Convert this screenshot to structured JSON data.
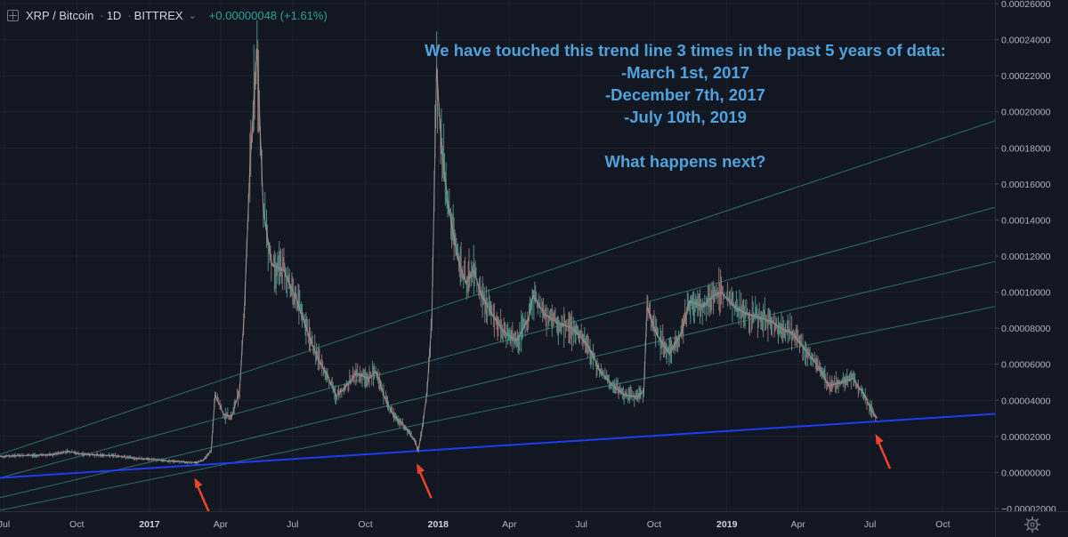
{
  "header": {
    "symbol": "XRP / Bitcoin",
    "interval": "1D",
    "exchange": "BITTREX",
    "change": "+0.00000048 (+1.61%)"
  },
  "annotation": {
    "lines": [
      "We have touched this trend line 3 times in the past 5 years of data:",
      "-March 1st, 2017",
      "-December 7th, 2017",
      "-July 10th, 2019",
      "",
      "What happens next?"
    ]
  },
  "colors": {
    "background": "#131722",
    "trend_line": "#1f3cf5",
    "channel_lines": "#2f6f6a",
    "arrows": "#e8452c",
    "annotation_text": "#4fa3dc",
    "candle_up": "#4f8c82",
    "candle_down": "#8a6f70"
  },
  "icons": [
    "expand-icon",
    "chevron-down-icon",
    "gear-icon",
    "arrow-icon"
  ],
  "chart_data": {
    "type": "line",
    "title": "XRP / Bitcoin",
    "y_tick_labels": [
      "0.00026000",
      "0.00024000",
      "0.00022000",
      "0.00020000",
      "0.00018000",
      "0.00016000",
      "0.00014000",
      "0.00012000",
      "0.00010000",
      "0.00008000",
      "0.00006000",
      "0.00004000",
      "0.00002000",
      "0.00000000",
      "−0.00002000"
    ],
    "ylim": [
      -2.15e-05,
      0.000262
    ],
    "x_tick_labels": [
      "Jul",
      "Oct",
      "2017",
      "Apr",
      "Jul",
      "Oct",
      "2018",
      "Apr",
      "Jul",
      "Oct",
      "2019",
      "Apr",
      "Jul",
      "Oct"
    ],
    "x_tick_dates": [
      "2016-07-01",
      "2016-10-01",
      "2017-01-01",
      "2017-04-01",
      "2017-07-01",
      "2017-10-01",
      "2018-01-01",
      "2018-04-01",
      "2018-07-01",
      "2018-10-01",
      "2019-01-01",
      "2019-04-01",
      "2019-07-01",
      "2019-10-01"
    ],
    "xlim": [
      "2016-06-26",
      "2019-12-06"
    ],
    "grid": true,
    "series": [
      {
        "values_note": "",
        "points": [
          [
            "2016-06-26",
            8.8e-06
          ],
          [
            "2016-07-15",
            9.3e-06
          ],
          [
            "2016-08-10",
            9.5e-06
          ],
          [
            "2016-09-01",
            9.8e-06
          ],
          [
            "2016-09-20",
            1.18e-05
          ],
          [
            "2016-10-05",
            1.02e-05
          ],
          [
            "2016-10-25",
            9.7e-06
          ],
          [
            "2016-11-20",
            9.2e-06
          ],
          [
            "2016-12-15",
            7.8e-06
          ],
          [
            "2017-01-01",
            7.3e-06
          ],
          [
            "2017-01-25",
            6.4e-06
          ],
          [
            "2017-02-15",
            5.8e-06
          ],
          [
            "2017-03-01",
            5.4e-06
          ],
          [
            "2017-03-10",
            7e-06
          ],
          [
            "2017-03-20",
            1.2e-05
          ],
          [
            "2017-03-25",
            4.3e-05
          ],
          [
            "2017-04-05",
            3.2e-05
          ],
          [
            "2017-04-15",
            3.1e-05
          ],
          [
            "2017-04-25",
            4.6e-05
          ],
          [
            "2017-05-01",
            9e-05
          ],
          [
            "2017-05-08",
            0.00017
          ],
          [
            "2017-05-17",
            0.000235
          ],
          [
            "2017-05-25",
            0.000145
          ],
          [
            "2017-06-05",
            0.000115
          ],
          [
            "2017-06-20",
            0.000112
          ],
          [
            "2017-07-05",
            9.7e-05
          ],
          [
            "2017-07-20",
            7.8e-05
          ],
          [
            "2017-08-01",
            6.4e-05
          ],
          [
            "2017-08-15",
            5.3e-05
          ],
          [
            "2017-08-25",
            4.2e-05
          ],
          [
            "2017-09-05",
            4.7e-05
          ],
          [
            "2017-09-20",
            5.5e-05
          ],
          [
            "2017-10-05",
            5.2e-05
          ],
          [
            "2017-10-15",
            5.6e-05
          ],
          [
            "2017-10-25",
            4.2e-05
          ],
          [
            "2017-11-05",
            3.2e-05
          ],
          [
            "2017-11-20",
            2.5e-05
          ],
          [
            "2017-12-01",
            1.85e-05
          ],
          [
            "2017-12-07",
            1.25e-05
          ],
          [
            "2017-12-12",
            2.5e-05
          ],
          [
            "2017-12-18",
            4.5e-05
          ],
          [
            "2017-12-24",
            8.5e-05
          ],
          [
            "2017-12-30",
            0.000225
          ],
          [
            "2018-01-05",
            0.00018
          ],
          [
            "2018-01-15",
            0.000145
          ],
          [
            "2018-01-25",
            0.00012
          ],
          [
            "2018-02-05",
            0.000105
          ],
          [
            "2018-02-15",
            0.000112
          ],
          [
            "2018-02-25",
            9.8e-05
          ],
          [
            "2018-03-10",
            8.8e-05
          ],
          [
            "2018-03-25",
            7.8e-05
          ],
          [
            "2018-04-10",
            7.3e-05
          ],
          [
            "2018-04-25",
            8.5e-05
          ],
          [
            "2018-05-01",
            9.8e-05
          ],
          [
            "2018-05-15",
            8.8e-05
          ],
          [
            "2018-06-01",
            8.3e-05
          ],
          [
            "2018-06-20",
            8e-05
          ],
          [
            "2018-07-10",
            7e-05
          ],
          [
            "2018-07-25",
            5.6e-05
          ],
          [
            "2018-08-10",
            4.8e-05
          ],
          [
            "2018-08-25",
            4.3e-05
          ],
          [
            "2018-09-10",
            4.2e-05
          ],
          [
            "2018-09-18",
            4.5e-05
          ],
          [
            "2018-09-22",
            9.2e-05
          ],
          [
            "2018-10-05",
            7.6e-05
          ],
          [
            "2018-10-20",
            6.6e-05
          ],
          [
            "2018-11-05",
            7.8e-05
          ],
          [
            "2018-11-15",
            9.5e-05
          ],
          [
            "2018-12-01",
            9.2e-05
          ],
          [
            "2018-12-15",
            9.8e-05
          ],
          [
            "2018-12-25",
            0.0001
          ],
          [
            "2019-01-10",
            9.2e-05
          ],
          [
            "2019-01-25",
            8.8e-05
          ],
          [
            "2019-02-10",
            8.6e-05
          ],
          [
            "2019-02-25",
            8.4e-05
          ],
          [
            "2019-03-10",
            8e-05
          ],
          [
            "2019-03-25",
            7.7e-05
          ],
          [
            "2019-04-10",
            6.8e-05
          ],
          [
            "2019-04-25",
            6e-05
          ],
          [
            "2019-05-10",
            4.8e-05
          ],
          [
            "2019-05-25",
            5e-05
          ],
          [
            "2019-06-10",
            5.2e-05
          ],
          [
            "2019-06-25",
            4.2e-05
          ],
          [
            "2019-07-05",
            3.3e-05
          ],
          [
            "2019-07-10",
            3e-05
          ]
        ]
      }
    ],
    "drawings": {
      "trend_line": [
        [
          "2016-06-26",
          -3e-06
        ],
        [
          "2019-12-06",
          3.25e-05
        ]
      ],
      "channel_lines": [
        [
          [
            "2016-06-26",
            1e-05
          ],
          [
            "2019-12-06",
            0.000195
          ]
        ],
        [
          [
            "2016-06-26",
            -3e-06
          ],
          [
            "2019-12-06",
            0.000147
          ]
        ],
        [
          [
            "2016-06-26",
            -1.4e-05
          ],
          [
            "2019-12-06",
            0.000117
          ]
        ],
        [
          [
            "2016-06-26",
            -2.1e-05
          ],
          [
            "2019-12-06",
            9.2e-05
          ]
        ]
      ],
      "arrows": [
        "2017-03-01",
        "2017-12-07",
        "2019-07-10"
      ]
    }
  }
}
